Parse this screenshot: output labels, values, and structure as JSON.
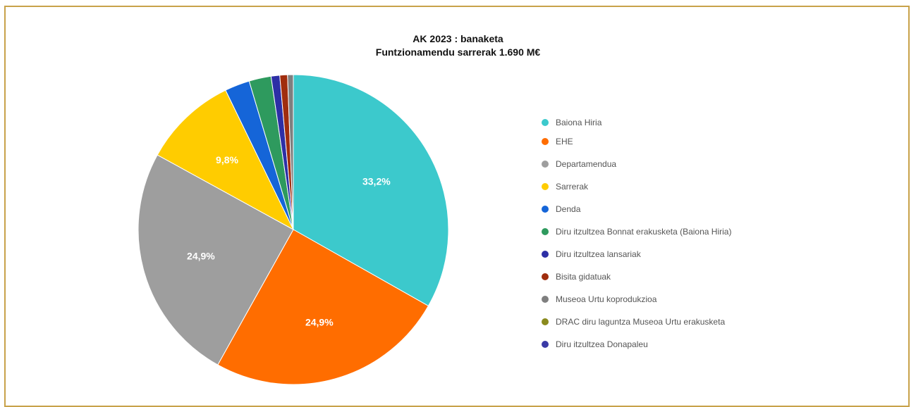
{
  "chart_data": {
    "type": "pie",
    "title": "AK 2023 : banaketa",
    "subtitle": "Funtzionamendu sarrerak 1.690 M€",
    "legend_position": "right",
    "slices": [
      {
        "label": "Baiona Hiria",
        "value": 33.2,
        "color": "#3cc9cc",
        "data_label": "33,2%"
      },
      {
        "label": "EHE",
        "value": 24.9,
        "color": "#ff6d00",
        "data_label": "24,9%"
      },
      {
        "label": "Departamendua",
        "value": 24.9,
        "color": "#9e9e9e",
        "data_label": "24,9%"
      },
      {
        "label": "Sarrerak",
        "value": 9.8,
        "color": "#ffcc00",
        "data_label": "9,8%"
      },
      {
        "label": "Denda",
        "value": 2.6,
        "color": "#1565d8",
        "data_label": ""
      },
      {
        "label": "Diru itzultzea Bonnat erakusketa (Baiona Hiria)",
        "value": 2.3,
        "color": "#2e9a5e",
        "data_label": ""
      },
      {
        "label": "Diru itzultzea lansariak",
        "value": 0.9,
        "color": "#2d2fa6",
        "data_label": ""
      },
      {
        "label": "Bisita gidatuak",
        "value": 0.8,
        "color": "#a02d0e",
        "data_label": ""
      },
      {
        "label": "Museoa Urtu koprodukzioa",
        "value": 0.6,
        "color": "#7f7f7f",
        "data_label": ""
      },
      {
        "label": "DRAC diru laguntza Museoa Urtu erakusketa",
        "value": 0.0,
        "color": "#8a8a1e",
        "data_label": ""
      },
      {
        "label": "Diru itzultzea Donapaleu",
        "value": 0.0,
        "color": "#3a3aa6",
        "data_label": ""
      }
    ]
  }
}
